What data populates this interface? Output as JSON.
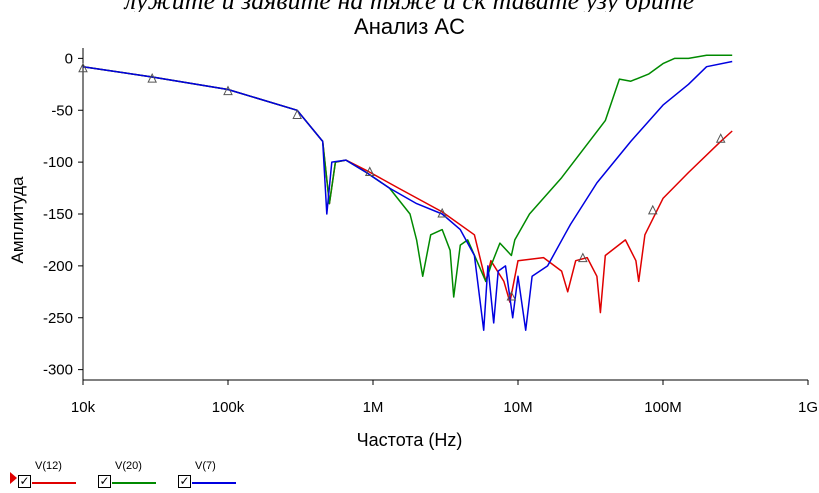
{
  "top_text": "лyжите и заявите на тяже и ск тавате узу брите",
  "chart_data": {
    "type": "line",
    "title": "Анализ AC",
    "xlabel": "Частота (Hz)",
    "ylabel": "Амплитуда",
    "x_scale": "log",
    "xlim": [
      10000,
      1000000000
    ],
    "ylim": [
      -310,
      10
    ],
    "x_ticks": [
      {
        "value": 10000,
        "label": "10k"
      },
      {
        "value": 100000,
        "label": "100k"
      },
      {
        "value": 1000000,
        "label": "1M"
      },
      {
        "value": 10000000,
        "label": "10M"
      },
      {
        "value": 100000000,
        "label": "100M"
      },
      {
        "value": 1000000000,
        "label": "1G"
      }
    ],
    "y_ticks": [
      {
        "value": 0,
        "label": "0"
      },
      {
        "value": -50,
        "label": "-50"
      },
      {
        "value": -100,
        "label": "-100"
      },
      {
        "value": -150,
        "label": "-150"
      },
      {
        "value": -200,
        "label": "-200"
      },
      {
        "value": -250,
        "label": "-250"
      },
      {
        "value": -300,
        "label": "-300"
      }
    ],
    "legend_position": "bottom-left",
    "series": [
      {
        "name": "V(12)",
        "color": "#e00000",
        "points": [
          [
            10000,
            -8
          ],
          [
            30000,
            -18
          ],
          [
            100000,
            -30
          ],
          [
            300000,
            -50
          ],
          [
            450000,
            -80
          ],
          [
            500000,
            -140
          ],
          [
            550000,
            -100
          ],
          [
            650000,
            -98
          ],
          [
            900000,
            -108
          ],
          [
            1500000,
            -125
          ],
          [
            3000000,
            -148
          ],
          [
            5000000,
            -170
          ],
          [
            6000000,
            -215
          ],
          [
            6500000,
            -195
          ],
          [
            8000000,
            -215
          ],
          [
            8800000,
            -235
          ],
          [
            10000000,
            -195
          ],
          [
            15000000,
            -192
          ],
          [
            20000000,
            -205
          ],
          [
            22000000,
            -225
          ],
          [
            25000000,
            -195
          ],
          [
            30000000,
            -192
          ],
          [
            35000000,
            -210
          ],
          [
            37000000,
            -245
          ],
          [
            40000000,
            -190
          ],
          [
            55000000,
            -175
          ],
          [
            65000000,
            -195
          ],
          [
            68000000,
            -215
          ],
          [
            75000000,
            -170
          ],
          [
            100000000,
            -135
          ],
          [
            150000000,
            -110
          ],
          [
            250000000,
            -80
          ],
          [
            300000000,
            -70
          ]
        ],
        "markers": [
          [
            10000,
            -10
          ],
          [
            30000,
            -20
          ],
          [
            100000,
            -32
          ],
          [
            300000,
            -55
          ],
          [
            950000,
            -110
          ],
          [
            3000000,
            -150
          ],
          [
            9000000,
            -230
          ],
          [
            28000000,
            -193
          ],
          [
            85000000,
            -147
          ],
          [
            250000000,
            -78
          ]
        ]
      },
      {
        "name": "V(20)",
        "color": "#008a00",
        "points": [
          [
            10000,
            -8
          ],
          [
            30000,
            -18
          ],
          [
            100000,
            -30
          ],
          [
            300000,
            -50
          ],
          [
            450000,
            -80
          ],
          [
            500000,
            -140
          ],
          [
            550000,
            -100
          ],
          [
            650000,
            -98
          ],
          [
            900000,
            -110
          ],
          [
            1300000,
            -125
          ],
          [
            1800000,
            -150
          ],
          [
            2000000,
            -175
          ],
          [
            2200000,
            -210
          ],
          [
            2500000,
            -170
          ],
          [
            3000000,
            -165
          ],
          [
            3400000,
            -185
          ],
          [
            3600000,
            -230
          ],
          [
            4000000,
            -180
          ],
          [
            4500000,
            -175
          ],
          [
            5200000,
            -195
          ],
          [
            6000000,
            -215
          ],
          [
            6500000,
            -200
          ],
          [
            7500000,
            -178
          ],
          [
            9000000,
            -190
          ],
          [
            9500000,
            -175
          ],
          [
            12000000,
            -150
          ],
          [
            20000000,
            -115
          ],
          [
            40000000,
            -60
          ],
          [
            50000000,
            -20
          ],
          [
            60000000,
            -22
          ],
          [
            80000000,
            -15
          ],
          [
            100000000,
            -5
          ],
          [
            120000000,
            0
          ],
          [
            150000000,
            0
          ],
          [
            200000000,
            3
          ],
          [
            300000000,
            3
          ]
        ]
      },
      {
        "name": "V(7)",
        "color": "#0000e0",
        "points": [
          [
            10000,
            -8
          ],
          [
            30000,
            -18
          ],
          [
            100000,
            -30
          ],
          [
            300000,
            -50
          ],
          [
            450000,
            -80
          ],
          [
            480000,
            -150
          ],
          [
            520000,
            -100
          ],
          [
            650000,
            -98
          ],
          [
            900000,
            -110
          ],
          [
            1300000,
            -125
          ],
          [
            2000000,
            -140
          ],
          [
            3000000,
            -150
          ],
          [
            4000000,
            -165
          ],
          [
            5000000,
            -190
          ],
          [
            5800000,
            -262
          ],
          [
            6200000,
            -200
          ],
          [
            6800000,
            -255
          ],
          [
            7300000,
            -205
          ],
          [
            8200000,
            -200
          ],
          [
            9200000,
            -250
          ],
          [
            10000000,
            -210
          ],
          [
            11300000,
            -262
          ],
          [
            12500000,
            -210
          ],
          [
            16000000,
            -200
          ],
          [
            21000000,
            -170
          ],
          [
            23000000,
            -160
          ],
          [
            35000000,
            -120
          ],
          [
            60000000,
            -80
          ],
          [
            100000000,
            -45
          ],
          [
            150000000,
            -25
          ],
          [
            200000000,
            -8
          ],
          [
            300000000,
            -3
          ]
        ]
      }
    ]
  }
}
